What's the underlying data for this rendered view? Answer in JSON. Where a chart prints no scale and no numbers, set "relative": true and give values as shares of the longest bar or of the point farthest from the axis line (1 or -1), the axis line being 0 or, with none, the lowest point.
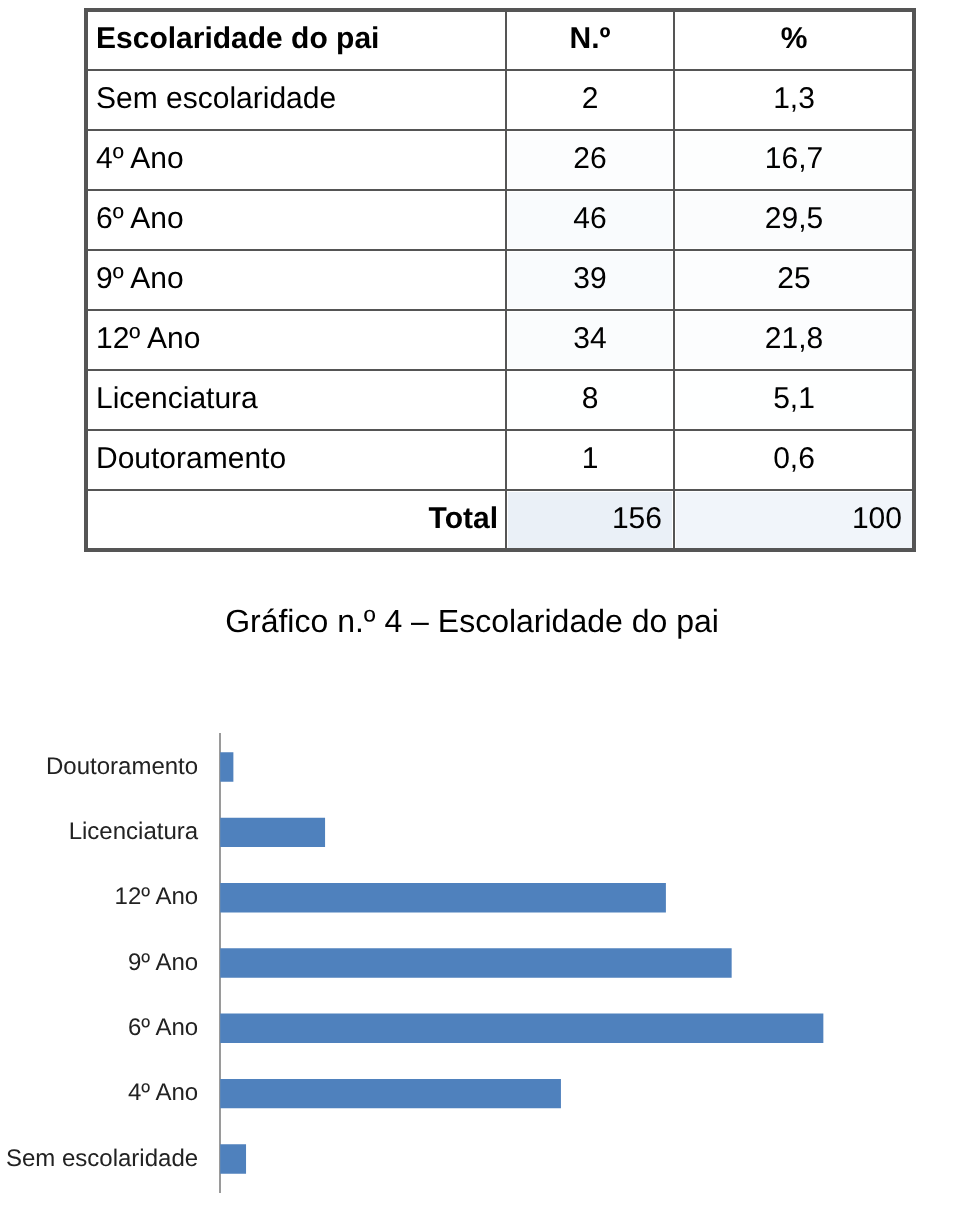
{
  "chart_data": [
    {
      "type": "heatmap",
      "ylabel": "Escolaridade do pai",
      "categories": [
        "N.º",
        "%"
      ],
      "y_categories": [
        "Sem escolaridade",
        "4º Ano",
        "6º Ano",
        "9º Ano",
        "12º Ano",
        "Licenciatura",
        "Doutoramento",
        "Total"
      ],
      "cells": [
        [
          2,
          1.3
        ],
        [
          26,
          16.7
        ],
        [
          46,
          29.5
        ],
        [
          39,
          25
        ],
        [
          34,
          21.8
        ],
        [
          8,
          5.1
        ],
        [
          1,
          0.6
        ],
        [
          156,
          100
        ]
      ],
      "cell_labels": [
        [
          "2",
          "1,3"
        ],
        [
          "26",
          "16,7"
        ],
        [
          "46",
          "29,5"
        ],
        [
          "39",
          "25"
        ],
        [
          "34",
          "21,8"
        ],
        [
          "8",
          "5,1"
        ],
        [
          "1",
          "0,6"
        ],
        [
          "156",
          "100"
        ]
      ]
    },
    {
      "type": "bar",
      "orientation": "horizontal",
      "title": "Gráfico n.º 4 – Escolaridade do pai",
      "categories": [
        "Doutoramento",
        "Licenciatura",
        "12º Ano",
        "9º Ano",
        "6º Ano",
        "4º Ano",
        "Sem escolaridade"
      ],
      "values": [
        0.022,
        0.174,
        0.739,
        0.848,
        1,
        0.565,
        0.043
      ],
      "color": "#4f81bd",
      "relative": true,
      "tick_labels": "y",
      "legend": false
    }
  ]
}
